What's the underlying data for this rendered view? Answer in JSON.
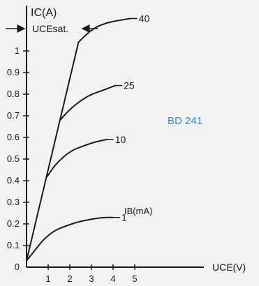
{
  "chart_data": {
    "type": "line",
    "title": "",
    "ylabel": "IC(A)",
    "xlabel": "UCE(V)",
    "xlim": [
      0,
      5.5
    ],
    "ylim": [
      0,
      1.1
    ],
    "x_ticks": [
      1,
      2,
      3,
      4,
      5
    ],
    "y_ticks": [
      0,
      0.1,
      0.2,
      0.3,
      0.4,
      0.5,
      0.6,
      0.7,
      0.8,
      0.9,
      1
    ],
    "y_tick_labels": [
      "0",
      "0.1",
      "0.2",
      "0.3",
      "0.4",
      "0.5",
      "0.6",
      "0.7",
      "0.8",
      "0.9",
      "1"
    ],
    "saturation_label": "UCEsat.",
    "device_label": "BD 241",
    "device_label_color": "#2f8fcf",
    "curve_param_label": "IB(mA)",
    "saturation_line": {
      "x": [
        0,
        2.4
      ],
      "y": [
        0.03,
        1.04
      ]
    },
    "series": [
      {
        "name": "1",
        "x": [
          0,
          0.4,
          0.8,
          1.3,
          1.8,
          2.4,
          2.9,
          3.5,
          4.0
        ],
        "y": [
          0.03,
          0.08,
          0.13,
          0.17,
          0.19,
          0.21,
          0.22,
          0.23,
          0.23
        ]
      },
      {
        "name": "10",
        "x": [
          0.96,
          1.3,
          1.7,
          2.1,
          2.6,
          3.2,
          3.7
        ],
        "y": [
          0.42,
          0.47,
          0.51,
          0.54,
          0.56,
          0.58,
          0.59
        ]
      },
      {
        "name": "25",
        "x": [
          1.55,
          2.0,
          2.5,
          3.0,
          3.6,
          4.1
        ],
        "y": [
          0.68,
          0.73,
          0.77,
          0.8,
          0.82,
          0.84
        ]
      },
      {
        "name": "40",
        "x": [
          2.4,
          2.8,
          3.2,
          3.7,
          4.2,
          4.8
        ],
        "y": [
          1.04,
          1.08,
          1.11,
          1.13,
          1.14,
          1.15
        ]
      }
    ]
  }
}
